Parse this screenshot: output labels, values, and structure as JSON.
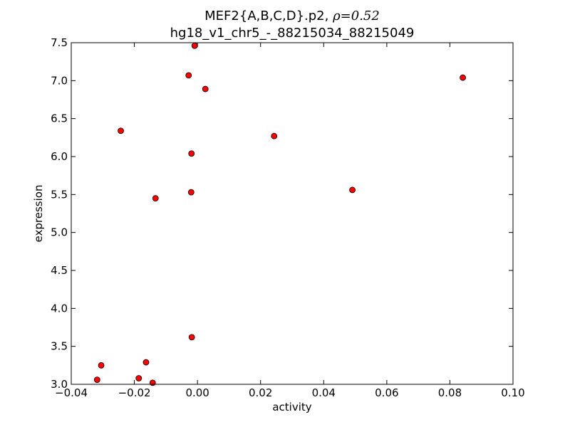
{
  "chart_data": {
    "type": "scatter",
    "title_prefix": "MEF2{A,B,C,D}.p2, ",
    "title_rho": "ρ=0.52",
    "subtitle": "hg18_v1_chr5_-_88215034_88215049",
    "xlabel": "activity",
    "ylabel": "expression",
    "xlim": [
      -0.04,
      0.1
    ],
    "ylim": [
      3.0,
      7.5
    ],
    "x_ticks": [
      -0.04,
      -0.02,
      0.0,
      0.02,
      0.04,
      0.06,
      0.08,
      0.1
    ],
    "x_tick_labels": [
      "−0.04",
      "−0.02",
      "0.00",
      "0.02",
      "0.04",
      "0.06",
      "0.08",
      "0.10"
    ],
    "y_ticks": [
      3.0,
      3.5,
      4.0,
      4.5,
      5.0,
      5.5,
      6.0,
      6.5,
      7.0,
      7.5
    ],
    "y_tick_labels": [
      "3.0",
      "3.5",
      "4.0",
      "4.5",
      "5.0",
      "5.5",
      "6.0",
      "6.5",
      "7.0",
      "7.5"
    ],
    "marker_color": "#ff0000",
    "marker_edge_color": "#000000",
    "grid": false,
    "points": [
      {
        "x": -0.0009,
        "y": 7.46
      },
      {
        "x": -0.0028,
        "y": 7.07
      },
      {
        "x": 0.0025,
        "y": 6.89
      },
      {
        "x": 0.0841,
        "y": 7.04
      },
      {
        "x": -0.0243,
        "y": 6.34
      },
      {
        "x": 0.0243,
        "y": 6.27
      },
      {
        "x": -0.0019,
        "y": 6.04
      },
      {
        "x": -0.002,
        "y": 5.53
      },
      {
        "x": 0.0491,
        "y": 5.56
      },
      {
        "x": -0.0133,
        "y": 5.45
      },
      {
        "x": -0.0018,
        "y": 3.62
      },
      {
        "x": -0.0305,
        "y": 3.25
      },
      {
        "x": -0.0163,
        "y": 3.29
      },
      {
        "x": -0.0318,
        "y": 3.06
      },
      {
        "x": -0.0186,
        "y": 3.08
      },
      {
        "x": -0.0142,
        "y": 3.02
      }
    ]
  }
}
